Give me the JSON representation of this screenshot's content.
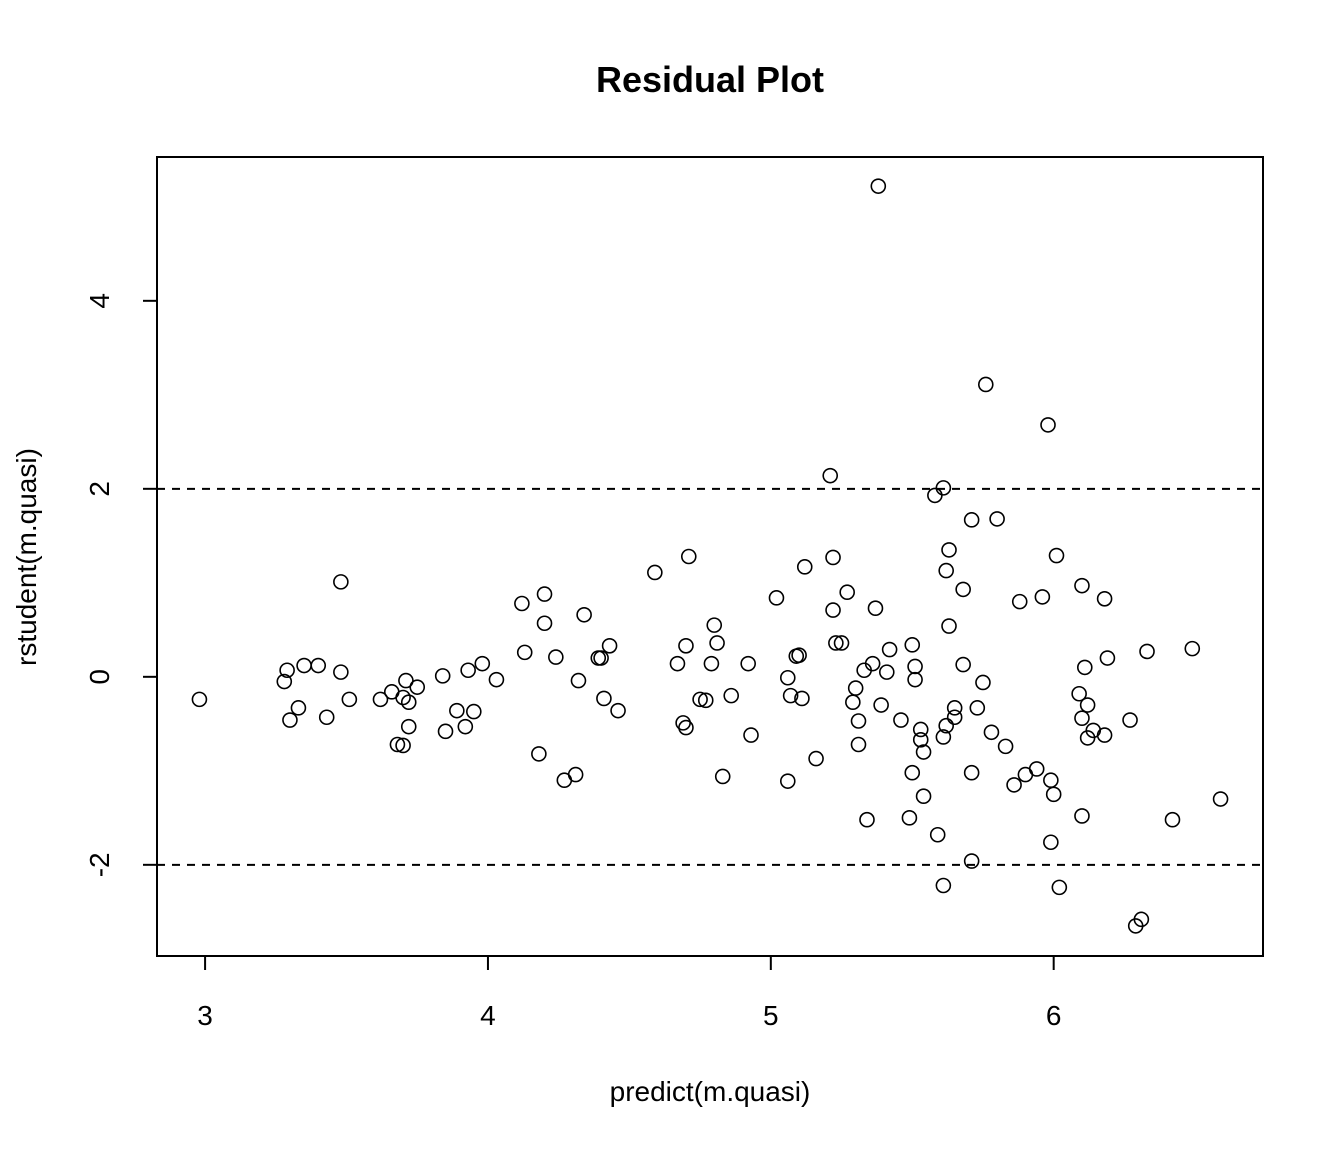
{
  "chart_data": {
    "type": "scatter",
    "title": "Residual Plot",
    "xlabel": "predict(m.quasi)",
    "ylabel": "rstudent(m.quasi)",
    "xlim": [
      2.83,
      6.74
    ],
    "ylim": [
      -2.97,
      5.53
    ],
    "xticks": [
      3,
      4,
      5,
      6
    ],
    "yticks": [
      -2,
      0,
      2,
      4
    ],
    "xtick_labels": [
      "3",
      "4",
      "5",
      "6"
    ],
    "ytick_labels": [
      "-2",
      "0",
      "2",
      "4"
    ],
    "reference_lines": [
      2,
      -2
    ],
    "grid": false,
    "points": [
      [
        2.98,
        -0.24
      ],
      [
        3.29,
        0.07
      ],
      [
        3.28,
        -0.05
      ],
      [
        3.3,
        -0.46
      ],
      [
        3.33,
        -0.33
      ],
      [
        3.35,
        0.12
      ],
      [
        3.4,
        0.12
      ],
      [
        3.43,
        -0.43
      ],
      [
        3.48,
        1.01
      ],
      [
        3.48,
        0.05
      ],
      [
        3.51,
        -0.24
      ],
      [
        3.62,
        -0.24
      ],
      [
        3.66,
        -0.16
      ],
      [
        3.68,
        -0.72
      ],
      [
        3.7,
        -0.73
      ],
      [
        3.7,
        -0.22
      ],
      [
        3.71,
        -0.04
      ],
      [
        3.72,
        -0.53
      ],
      [
        3.72,
        -0.27
      ],
      [
        3.75,
        -0.11
      ],
      [
        3.84,
        0.01
      ],
      [
        3.85,
        -0.58
      ],
      [
        3.89,
        -0.36
      ],
      [
        3.92,
        -0.53
      ],
      [
        3.93,
        0.07
      ],
      [
        3.95,
        -0.37
      ],
      [
        3.98,
        0.14
      ],
      [
        4.03,
        -0.03
      ],
      [
        4.12,
        0.78
      ],
      [
        4.13,
        0.26
      ],
      [
        4.18,
        -0.82
      ],
      [
        4.2,
        0.88
      ],
      [
        4.2,
        0.57
      ],
      [
        4.24,
        0.21
      ],
      [
        4.27,
        -1.1
      ],
      [
        4.31,
        -1.04
      ],
      [
        4.32,
        -0.04
      ],
      [
        4.34,
        0.66
      ],
      [
        4.39,
        0.2
      ],
      [
        4.4,
        0.2
      ],
      [
        4.41,
        -0.23
      ],
      [
        4.43,
        0.33
      ],
      [
        4.46,
        -0.36
      ],
      [
        4.59,
        1.11
      ],
      [
        4.67,
        0.14
      ],
      [
        4.69,
        -0.49
      ],
      [
        4.7,
        -0.54
      ],
      [
        4.7,
        0.33
      ],
      [
        4.71,
        1.28
      ],
      [
        4.75,
        -0.24
      ],
      [
        4.77,
        -0.25
      ],
      [
        4.79,
        0.14
      ],
      [
        4.8,
        0.55
      ],
      [
        4.81,
        0.36
      ],
      [
        4.83,
        -1.06
      ],
      [
        4.86,
        -0.2
      ],
      [
        4.92,
        0.14
      ],
      [
        4.93,
        -0.62
      ],
      [
        5.02,
        0.84
      ],
      [
        5.06,
        -0.01
      ],
      [
        5.06,
        -1.11
      ],
      [
        5.07,
        -0.2
      ],
      [
        5.09,
        0.22
      ],
      [
        5.1,
        0.23
      ],
      [
        5.11,
        -0.23
      ],
      [
        5.12,
        1.17
      ],
      [
        5.16,
        -0.87
      ],
      [
        5.21,
        2.14
      ],
      [
        5.22,
        1.27
      ],
      [
        5.22,
        0.71
      ],
      [
        5.23,
        0.36
      ],
      [
        5.25,
        0.36
      ],
      [
        5.27,
        0.9
      ],
      [
        5.29,
        -0.27
      ],
      [
        5.3,
        -0.12
      ],
      [
        5.31,
        -0.47
      ],
      [
        5.31,
        -0.72
      ],
      [
        5.33,
        0.07
      ],
      [
        5.34,
        -1.52
      ],
      [
        5.36,
        0.14
      ],
      [
        5.37,
        0.73
      ],
      [
        5.38,
        5.22
      ],
      [
        5.39,
        -0.3
      ],
      [
        5.41,
        0.05
      ],
      [
        5.42,
        0.29
      ],
      [
        5.46,
        -0.46
      ],
      [
        5.49,
        -1.5
      ],
      [
        5.5,
        -1.02
      ],
      [
        5.5,
        0.34
      ],
      [
        5.51,
        0.11
      ],
      [
        5.51,
        -0.03
      ],
      [
        5.53,
        -0.56
      ],
      [
        5.53,
        -0.67
      ],
      [
        5.54,
        -0.8
      ],
      [
        5.54,
        -1.27
      ],
      [
        5.58,
        1.93
      ],
      [
        5.59,
        -1.68
      ],
      [
        5.61,
        2.01
      ],
      [
        5.61,
        -2.22
      ],
      [
        5.61,
        -0.64
      ],
      [
        5.62,
        1.13
      ],
      [
        5.62,
        -0.52
      ],
      [
        5.63,
        1.35
      ],
      [
        5.63,
        0.54
      ],
      [
        5.65,
        -0.33
      ],
      [
        5.65,
        -0.43
      ],
      [
        5.68,
        0.13
      ],
      [
        5.68,
        0.93
      ],
      [
        5.71,
        1.67
      ],
      [
        5.71,
        -1.02
      ],
      [
        5.71,
        -1.96
      ],
      [
        5.73,
        -0.33
      ],
      [
        5.75,
        -0.06
      ],
      [
        5.76,
        3.11
      ],
      [
        5.78,
        -0.59
      ],
      [
        5.8,
        1.68
      ],
      [
        5.83,
        -0.74
      ],
      [
        5.86,
        -1.15
      ],
      [
        5.88,
        0.8
      ],
      [
        5.9,
        -1.04
      ],
      [
        5.94,
        -0.98
      ],
      [
        5.96,
        0.85
      ],
      [
        5.98,
        2.68
      ],
      [
        5.99,
        -1.1
      ],
      [
        5.99,
        -1.76
      ],
      [
        6.0,
        -1.25
      ],
      [
        6.01,
        1.29
      ],
      [
        6.02,
        -2.24
      ],
      [
        6.09,
        -0.18
      ],
      [
        6.1,
        -0.44
      ],
      [
        6.1,
        0.97
      ],
      [
        6.1,
        -1.48
      ],
      [
        6.11,
        0.1
      ],
      [
        6.12,
        -0.3
      ],
      [
        6.12,
        -0.65
      ],
      [
        6.14,
        -0.57
      ],
      [
        6.18,
        0.83
      ],
      [
        6.18,
        -0.62
      ],
      [
        6.19,
        0.2
      ],
      [
        6.27,
        -0.46
      ],
      [
        6.29,
        -2.65
      ],
      [
        6.31,
        -2.58
      ],
      [
        6.33,
        0.27
      ],
      [
        6.42,
        -1.52
      ],
      [
        6.49,
        0.3
      ],
      [
        6.59,
        -1.3
      ]
    ]
  }
}
